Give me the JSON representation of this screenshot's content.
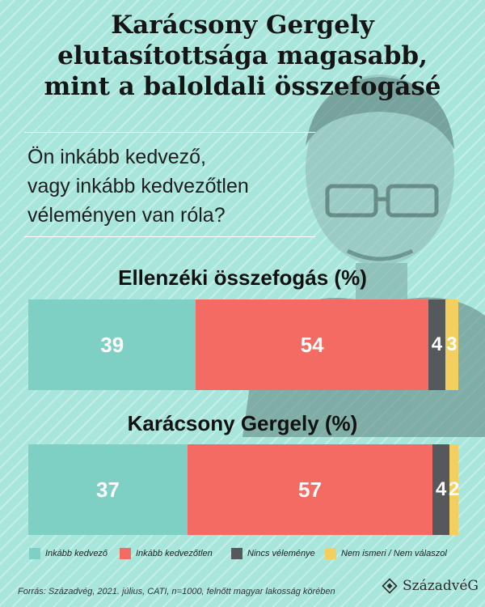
{
  "title_lines": [
    "Karácsony Gergely",
    "elutasítottsága magasabb,",
    "mint a baloldali összefogásé"
  ],
  "question_lines": [
    "Ön inkább kedvező,",
    "vagy inkább kedvezőtlen",
    "véleményen van róla?"
  ],
  "colors": {
    "background": "#a8e6dc",
    "favorable": "#7ecfc4",
    "unfavorable": "#f46b64",
    "no_opinion": "#56595c",
    "unknown": "#f2cf5e"
  },
  "legend": [
    {
      "label": "Inkább kedvező",
      "color": "#7ecfc4"
    },
    {
      "label": "Inkább kedvezőtlen",
      "color": "#f46b64"
    },
    {
      "label": "Nincs véleménye",
      "color": "#56595c"
    },
    {
      "label": "Nem ismeri / Nem válaszol",
      "color": "#f2cf5e"
    }
  ],
  "source": "Forrás: Századvég, 2021. július, CATI, n=1000, felnőtt magyar lakosság körében",
  "logo_text": "SzázadvéG",
  "chart_data": {
    "type": "bar",
    "orientation": "horizontal-stacked",
    "categories": [
      "Ellenzéki összefogás (%)",
      "Karácsony Gergely (%)"
    ],
    "series": [
      {
        "name": "Inkább kedvező",
        "values": [
          39,
          37
        ]
      },
      {
        "name": "Inkább kedvezőtlen",
        "values": [
          54,
          57
        ]
      },
      {
        "name": "Nincs véleménye",
        "values": [
          4,
          4
        ]
      },
      {
        "name": "Nem ismeri / Nem válaszol",
        "values": [
          3,
          2
        ]
      }
    ],
    "legend_position": "bottom"
  }
}
